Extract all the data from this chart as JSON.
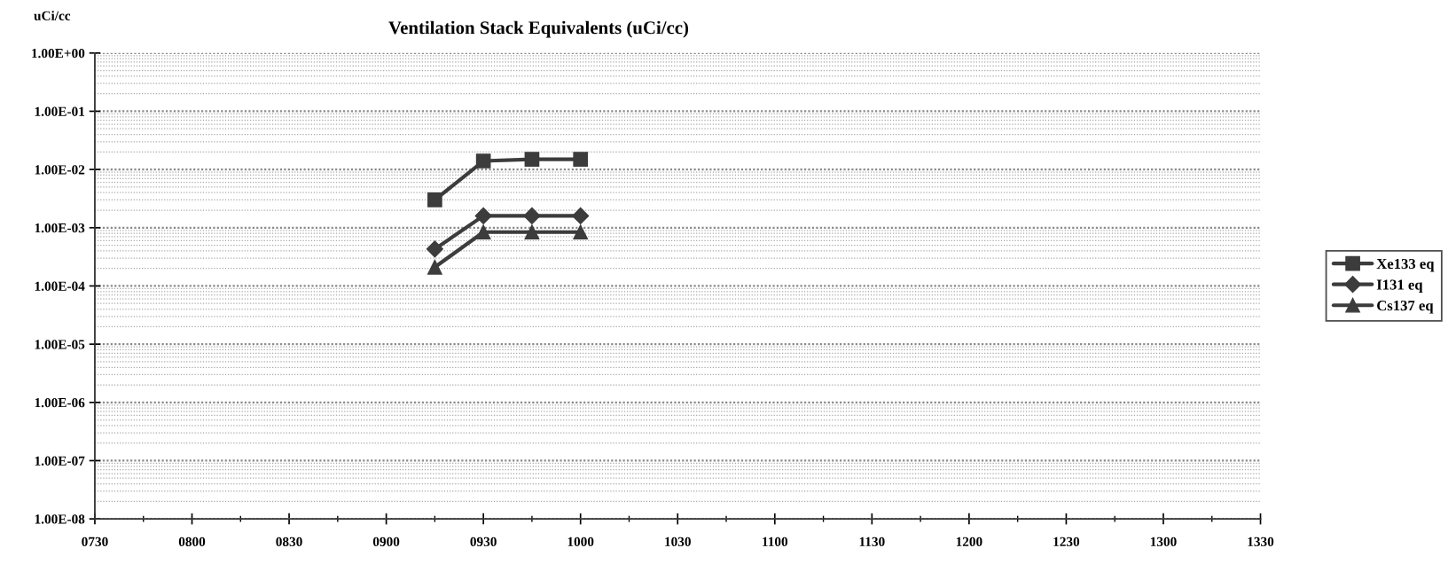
{
  "chart_data": {
    "type": "line",
    "title": "Ventilation Stack Equivalents (uCi/cc)",
    "ylabel": "uCi/cc",
    "categories": [
      "0730",
      null,
      "0800",
      null,
      "0830",
      null,
      "0900",
      null,
      "0930",
      null,
      "1000",
      null,
      "1030",
      null,
      "1100",
      null,
      "1130",
      null,
      "1200",
      null,
      "1230",
      null,
      "1300",
      null,
      "1330"
    ],
    "series": [
      {
        "name": "Xe133 eq",
        "color": "#3c3c3c",
        "marker": "square",
        "values": [
          null,
          null,
          null,
          null,
          null,
          null,
          null,
          0.003,
          0.014,
          0.015,
          0.015,
          null,
          null,
          null,
          null,
          null,
          null,
          null,
          null,
          null,
          null,
          null,
          null,
          null,
          null
        ]
      },
      {
        "name": "I131 eq",
        "color": "#3c3c3c",
        "marker": "diamond",
        "values": [
          null,
          null,
          null,
          null,
          null,
          null,
          null,
          0.00043,
          0.0016,
          0.0016,
          0.0016,
          null,
          null,
          null,
          null,
          null,
          null,
          null,
          null,
          null,
          null,
          null,
          null,
          null,
          null
        ]
      },
      {
        "name": "Cs137 eq",
        "color": "#3c3c3c",
        "marker": "triangle",
        "values": [
          null,
          null,
          null,
          null,
          null,
          null,
          null,
          0.00021,
          0.00084,
          0.00084,
          0.00084,
          null,
          null,
          null,
          null,
          null,
          null,
          null,
          null,
          null,
          null,
          null,
          null,
          null,
          null
        ]
      }
    ],
    "log": "y",
    "ylim": [
      1e-08,
      1
    ],
    "yticks": [
      {
        "value": 1e-08,
        "label": "1.00E-08"
      },
      {
        "value": 1e-07,
        "label": "1.00E-07"
      },
      {
        "value": 1e-06,
        "label": "1.00E-06"
      },
      {
        "value": 1e-05,
        "label": "1.00E-05"
      },
      {
        "value": 0.0001,
        "label": "1.00E-04"
      },
      {
        "value": 0.001,
        "label": "1.00E-03"
      },
      {
        "value": 0.01,
        "label": "1.00E-02"
      },
      {
        "value": 0.1,
        "label": "1.00E-01"
      },
      {
        "value": 1,
        "label": "1.00E+00"
      }
    ],
    "grid": "y",
    "legend": "right",
    "line_style": "solid"
  }
}
